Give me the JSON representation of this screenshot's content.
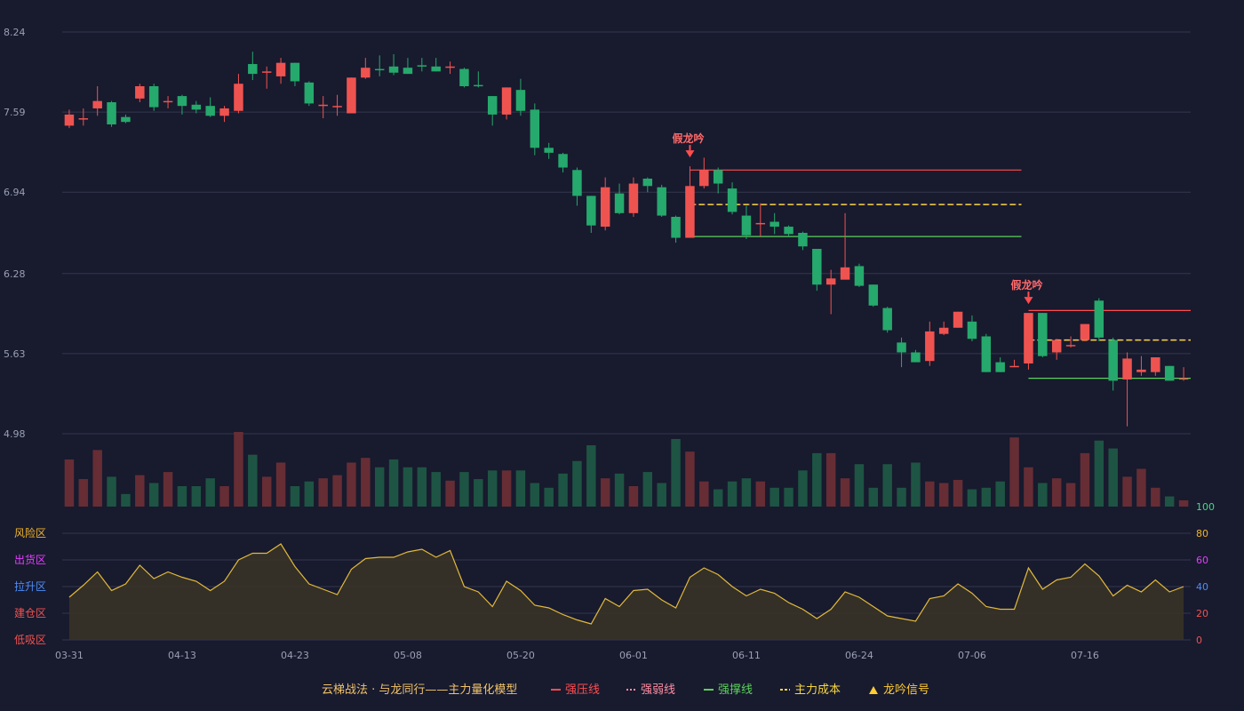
{
  "chart_data": {
    "type": "candlestick",
    "price_axis": {
      "ticks": [
        "8.24",
        "7.59",
        "6.94",
        "6.28",
        "5.63",
        "4.98"
      ],
      "min": 4.98,
      "max": 8.24
    },
    "x_ticks": [
      "03-31",
      "04-13",
      "04-23",
      "05-08",
      "05-20",
      "06-01",
      "06-11",
      "06-24",
      "07-06",
      "07-16"
    ],
    "x_tick_index": [
      0,
      8,
      16,
      24,
      32,
      40,
      48,
      56,
      64,
      72
    ],
    "candles": [
      [
        7.48,
        7.57,
        7.61,
        7.46
      ],
      [
        7.54,
        7.54,
        7.62,
        7.48
      ],
      [
        7.62,
        7.68,
        7.8,
        7.56
      ],
      [
        7.67,
        7.49,
        7.68,
        7.47
      ],
      [
        7.55,
        7.51,
        7.57,
        7.5
      ],
      [
        7.7,
        7.8,
        7.82,
        7.67
      ],
      [
        7.8,
        7.63,
        7.82,
        7.6
      ],
      [
        7.68,
        7.68,
        7.72,
        7.62
      ],
      [
        7.72,
        7.64,
        7.73,
        7.57
      ],
      [
        7.65,
        7.61,
        7.68,
        7.58
      ],
      [
        7.64,
        7.56,
        7.71,
        7.55
      ],
      [
        7.56,
        7.62,
        7.64,
        7.51
      ],
      [
        7.6,
        7.82,
        7.9,
        7.58
      ],
      [
        7.98,
        7.9,
        8.08,
        7.85
      ],
      [
        7.92,
        7.92,
        7.96,
        7.78
      ],
      [
        7.88,
        7.99,
        8.03,
        7.82
      ],
      [
        7.99,
        7.84,
        7.99,
        7.8
      ],
      [
        7.83,
        7.66,
        7.84,
        7.64
      ],
      [
        7.65,
        7.65,
        7.72,
        7.54
      ],
      [
        7.64,
        7.64,
        7.73,
        7.56
      ],
      [
        7.58,
        7.87,
        7.87,
        7.58
      ],
      [
        7.87,
        7.95,
        8.03,
        7.86
      ],
      [
        7.94,
        7.93,
        8.05,
        7.88
      ],
      [
        7.96,
        7.91,
        8.06,
        7.89
      ],
      [
        7.95,
        7.9,
        8.03,
        7.9
      ],
      [
        7.97,
        7.96,
        8.03,
        7.92
      ],
      [
        7.96,
        7.92,
        8.03,
        7.92
      ],
      [
        7.96,
        7.96,
        8.0,
        7.9
      ],
      [
        7.94,
        7.8,
        7.95,
        7.79
      ],
      [
        7.81,
        7.8,
        7.92,
        7.79
      ],
      [
        7.72,
        7.57,
        7.72,
        7.48
      ],
      [
        7.57,
        7.79,
        7.79,
        7.53
      ],
      [
        7.77,
        7.6,
        7.86,
        7.56
      ],
      [
        7.61,
        7.3,
        7.66,
        7.24
      ],
      [
        7.3,
        7.26,
        7.34,
        7.21
      ],
      [
        7.25,
        7.14,
        7.26,
        7.1
      ],
      [
        7.12,
        6.91,
        7.14,
        6.83
      ],
      [
        6.91,
        6.67,
        6.91,
        6.61
      ],
      [
        6.66,
        6.98,
        7.06,
        6.63
      ],
      [
        6.93,
        6.77,
        7.01,
        6.76
      ],
      [
        6.77,
        7.01,
        7.06,
        6.74
      ],
      [
        7.05,
        6.99,
        7.06,
        6.94
      ],
      [
        6.98,
        6.75,
        7.0,
        6.74
      ],
      [
        6.74,
        6.57,
        6.75,
        6.53
      ],
      [
        6.57,
        6.99,
        7.15,
        6.57
      ],
      [
        6.99,
        7.12,
        7.22,
        6.97
      ],
      [
        7.12,
        7.01,
        7.14,
        6.93
      ],
      [
        6.97,
        6.78,
        7.02,
        6.76
      ],
      [
        6.75,
        6.59,
        6.83,
        6.56
      ],
      [
        6.69,
        6.69,
        6.85,
        6.58
      ],
      [
        6.7,
        6.66,
        6.77,
        6.6
      ],
      [
        6.66,
        6.6,
        6.67,
        6.58
      ],
      [
        6.61,
        6.5,
        6.62,
        6.47
      ],
      [
        6.48,
        6.19,
        6.48,
        6.14
      ],
      [
        6.19,
        6.24,
        6.31,
        5.95
      ],
      [
        6.23,
        6.33,
        6.77,
        6.28
      ],
      [
        6.34,
        6.18,
        6.36,
        6.17
      ],
      [
        6.19,
        6.02,
        6.19,
        6.01
      ],
      [
        6.0,
        5.82,
        6.01,
        5.8
      ],
      [
        5.72,
        5.64,
        5.76,
        5.52
      ],
      [
        5.64,
        5.56,
        5.66,
        5.56
      ],
      [
        5.57,
        5.81,
        5.89,
        5.53
      ],
      [
        5.79,
        5.84,
        5.89,
        5.78
      ],
      [
        5.84,
        5.97,
        5.97,
        5.84
      ],
      [
        5.89,
        5.75,
        5.94,
        5.73
      ],
      [
        5.77,
        5.48,
        5.79,
        5.48
      ],
      [
        5.56,
        5.48,
        5.6,
        5.48
      ],
      [
        5.53,
        5.53,
        5.58,
        5.52
      ],
      [
        5.55,
        5.96,
        5.96,
        5.5
      ],
      [
        5.96,
        5.61,
        5.96,
        5.6
      ],
      [
        5.64,
        5.74,
        5.75,
        5.58
      ],
      [
        5.7,
        5.7,
        5.77,
        5.68
      ],
      [
        5.74,
        5.87,
        5.87,
        5.73
      ],
      [
        6.06,
        5.76,
        6.08,
        5.73
      ],
      [
        5.74,
        5.41,
        5.76,
        5.33
      ],
      [
        5.42,
        5.59,
        5.64,
        5.04
      ],
      [
        5.48,
        5.5,
        5.61,
        5.45
      ],
      [
        5.48,
        5.6,
        5.6,
        5.45
      ],
      [
        5.53,
        5.41,
        5.53,
        5.41
      ],
      [
        5.43,
        5.43,
        5.52,
        5.41
      ]
    ],
    "volume": [
      60,
      35,
      72,
      38,
      16,
      40,
      30,
      44,
      26,
      26,
      36,
      26,
      95,
      66,
      38,
      56,
      26,
      32,
      36,
      40,
      56,
      62,
      50,
      60,
      50,
      50,
      44,
      33,
      44,
      35,
      46,
      46,
      46,
      30,
      24,
      42,
      58,
      78,
      36,
      42,
      26,
      44,
      30,
      86,
      70,
      32,
      22,
      32,
      36,
      32,
      24,
      24,
      46,
      68,
      68,
      36,
      54,
      24,
      54,
      24,
      56,
      32,
      30,
      34,
      22,
      24,
      32,
      88,
      50,
      30,
      36,
      30,
      68,
      84,
      74,
      38,
      48,
      24,
      13,
      8
    ],
    "score": [
      32,
      41,
      51,
      37,
      42,
      56,
      46,
      51,
      47,
      44,
      37,
      44,
      60,
      65,
      65,
      72,
      55,
      42,
      38,
      34,
      53,
      61,
      62,
      62,
      66,
      68,
      62,
      67,
      40,
      36,
      25,
      44,
      37,
      26,
      24,
      19,
      15,
      12,
      31,
      25,
      37,
      38,
      30,
      24,
      47,
      54,
      49,
      40,
      33,
      38,
      35,
      28,
      23,
      16,
      23,
      36,
      32,
      25,
      18,
      16,
      14,
      31,
      33,
      42,
      35,
      25,
      23,
      23,
      54,
      38,
      45,
      47,
      57,
      48,
      33,
      41,
      36,
      45,
      36,
      40
    ],
    "score_axis": {
      "ticks": [
        "100",
        "80",
        "60",
        "40",
        "20",
        "0"
      ],
      "min": 0,
      "max": 100
    },
    "zones": [
      {
        "label": "风险区",
        "color": "#f0b429"
      },
      {
        "label": "出货区",
        "color": "#e040fb"
      },
      {
        "label": "拉升区",
        "color": "#4e8ef7"
      },
      {
        "label": "建仓区",
        "color": "#ef5350"
      },
      {
        "label": "低吸区",
        "color": "#ef5350"
      }
    ],
    "signals": [
      {
        "label": "假龙吟",
        "index": 44,
        "pressure": 7.12,
        "weak": 6.84,
        "cost": 6.84,
        "support": 6.58,
        "end_index": 67
      },
      {
        "label": "假龙吟",
        "index": 68,
        "pressure": 5.98,
        "weak": 5.74,
        "cost": 5.74,
        "support": 5.43,
        "end_index": 79
      }
    ],
    "colors": {
      "up": "#ef5350",
      "down": "#26a96c",
      "pressure": "#ff4d4f",
      "weak": "#ff8fa3",
      "support": "#5ad15a",
      "cost": "#f5d742",
      "signal": "#ffcc33",
      "score_line": "#e2b93b"
    },
    "legend": {
      "title": "云梯战法 · 与龙同行——主力量化模型",
      "items": [
        "强压线",
        "强弱线",
        "强撑线",
        "主力成本",
        "龙吟信号"
      ]
    }
  }
}
